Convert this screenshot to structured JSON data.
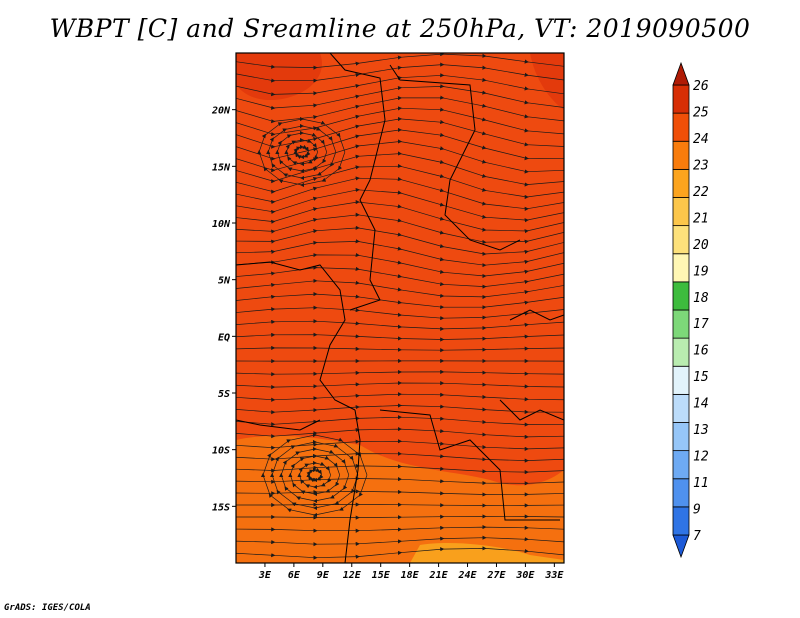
{
  "title": "WBPT [C] and Sreamline at 250hPa, VT: 2019090500",
  "credit": "GrADS: IGES/COLA",
  "map": {
    "lat_labels": [
      "20N",
      "15N",
      "10N",
      "5N",
      "EQ",
      "5S",
      "10S",
      "15S"
    ],
    "lat_values": [
      20,
      15,
      10,
      5,
      0,
      -5,
      -10,
      -15
    ],
    "lon_labels": [
      "3E",
      "6E",
      "9E",
      "12E",
      "15E",
      "18E",
      "21E",
      "24E",
      "27E",
      "30E",
      "33E"
    ],
    "lon_values": [
      3,
      6,
      9,
      12,
      15,
      18,
      21,
      24,
      27,
      30,
      33
    ],
    "lon_range": [
      0,
      34
    ],
    "lat_range": [
      -20,
      25
    ]
  },
  "colorbar": {
    "labels": [
      "7",
      "9",
      "11",
      "12",
      "13",
      "14",
      "15",
      "16",
      "17",
      "18",
      "19",
      "20",
      "21",
      "22",
      "23",
      "24",
      "25",
      "26"
    ],
    "colors": [
      "#1c5ad8",
      "#2f74e5",
      "#4f91ee",
      "#6eaaf3",
      "#96c6f8",
      "#bcdcfa",
      "#e2f3fb",
      "#b9ecb0",
      "#7dd879",
      "#3dbc3d",
      "#fff7b4",
      "#fde17b",
      "#fcc64a",
      "#fca41e",
      "#f87c0c",
      "#f04f08",
      "#d72e05",
      "#b01b05"
    ]
  },
  "colors": {
    "field_main": "#ee4a10",
    "field_warm": "#e33a0c",
    "field_cool": "#f5700f",
    "field_coolest": "#f9a01c",
    "line": "#1a1a1a"
  }
}
